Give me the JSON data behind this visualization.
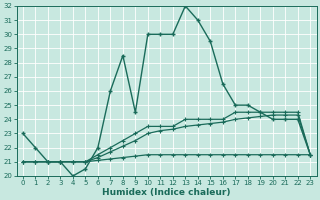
{
  "xlabel": "Humidex (Indice chaleur)",
  "background_color": "#c8e8e0",
  "line_color": "#1a6b5a",
  "grid_color": "#b0d8ce",
  "xlim": [
    -0.5,
    23.5
  ],
  "ylim": [
    20,
    32
  ],
  "yticks": [
    20,
    21,
    22,
    23,
    24,
    25,
    26,
    27,
    28,
    29,
    30,
    31,
    32
  ],
  "xticks": [
    0,
    1,
    2,
    3,
    4,
    5,
    6,
    7,
    8,
    9,
    10,
    11,
    12,
    13,
    14,
    15,
    16,
    17,
    18,
    19,
    20,
    21,
    22,
    23
  ],
  "curve_main_x": [
    0,
    1,
    2,
    3,
    4,
    5,
    6,
    7,
    8,
    9,
    10,
    11,
    12,
    13,
    14,
    15,
    16,
    17,
    18,
    19,
    20,
    21,
    22,
    23
  ],
  "curve_main_y": [
    23.0,
    22.0,
    21.0,
    21.0,
    20.0,
    20.5,
    22.0,
    26.0,
    28.5,
    24.5,
    30.0,
    30.0,
    30.0,
    32.0,
    31.0,
    29.5,
    26.5,
    25.0,
    25.0,
    24.5,
    24.0,
    24.0,
    24.0,
    21.5
  ],
  "curve_a_x": [
    0,
    1,
    2,
    3,
    4,
    5,
    6,
    7,
    8,
    9,
    10,
    11,
    12,
    13,
    14,
    15,
    16,
    17,
    18,
    19,
    20,
    21,
    22,
    23
  ],
  "curve_a_y": [
    21.0,
    21.0,
    21.0,
    21.0,
    21.0,
    21.0,
    21.5,
    22.0,
    22.5,
    23.0,
    23.5,
    23.5,
    23.5,
    24.0,
    24.0,
    24.0,
    24.0,
    24.5,
    24.5,
    24.5,
    24.5,
    24.5,
    24.5,
    21.5
  ],
  "curve_b_x": [
    0,
    1,
    2,
    3,
    4,
    5,
    6,
    7,
    8,
    9,
    10,
    11,
    12,
    13,
    14,
    15,
    16,
    17,
    18,
    19,
    20,
    21,
    22,
    23
  ],
  "curve_b_y": [
    21.0,
    21.0,
    21.0,
    21.0,
    21.0,
    21.0,
    21.3,
    21.7,
    22.1,
    22.5,
    23.0,
    23.2,
    23.3,
    23.5,
    23.6,
    23.7,
    23.8,
    24.0,
    24.1,
    24.2,
    24.3,
    24.3,
    24.3,
    21.5
  ],
  "curve_c_x": [
    0,
    1,
    2,
    3,
    4,
    5,
    6,
    7,
    8,
    9,
    10,
    11,
    12,
    13,
    14,
    15,
    16,
    17,
    18,
    19,
    20,
    21,
    22,
    23
  ],
  "curve_c_y": [
    21.0,
    21.0,
    21.0,
    21.0,
    21.0,
    21.0,
    21.1,
    21.2,
    21.3,
    21.4,
    21.5,
    21.5,
    21.5,
    21.5,
    21.5,
    21.5,
    21.5,
    21.5,
    21.5,
    21.5,
    21.5,
    21.5,
    21.5,
    21.5
  ]
}
